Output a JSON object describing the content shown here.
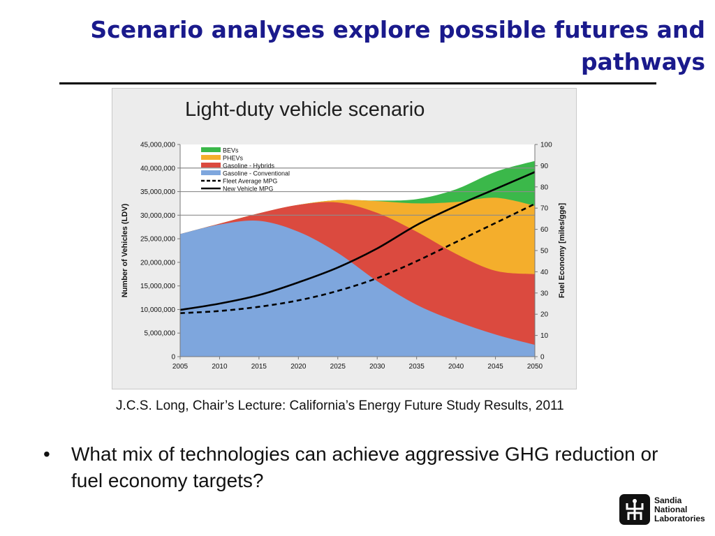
{
  "slide": {
    "title": "Scenario analyses explore possible futures and pathways",
    "citation": "J.C.S. Long, Chair’s Lecture: California’s Energy Future Study Results, 2011",
    "bullet": "What mix of technologies can achieve aggressive GHG reduction or fuel economy targets?",
    "logo_lines": [
      "Sandia",
      "National",
      "Laboratories"
    ]
  },
  "colors": {
    "title": "#1a1a8c",
    "bevs": "#3bb84a",
    "phevs": "#f4ae2c",
    "hybrids": "#db4a3f",
    "conventional": "#7ea6dd"
  },
  "chart_data": {
    "type": "area",
    "title": "Light-duty vehicle scenario",
    "x": [
      2005,
      2010,
      2015,
      2020,
      2025,
      2030,
      2035,
      2040,
      2045,
      2050
    ],
    "ylabel": "Number of Vehicles (LDV)",
    "ylabel_right": "Fuel Economy [miles/gge]",
    "ylim": [
      0,
      45000000
    ],
    "ylim_right": [
      0,
      100
    ],
    "x_ticks": [
      "2005",
      "2010",
      "2015",
      "2020",
      "2025",
      "2030",
      "2035",
      "2040",
      "2045",
      "2050"
    ],
    "y_ticks": [
      "0",
      "5,000,000",
      "10,000,000",
      "15,000,000",
      "20,000,000",
      "25,000,000",
      "30,000,000",
      "35,000,000",
      "40,000,000",
      "45,000,000"
    ],
    "y_ticks_right": [
      "0",
      "10",
      "20",
      "30",
      "40",
      "50",
      "60",
      "70",
      "80",
      "90",
      "100"
    ],
    "grid_lines_y": [
      30000000,
      35000000,
      40000000
    ],
    "legend_position": "top-left",
    "series": [
      {
        "name": "BEVs",
        "kind": "area",
        "color": "#3bb84a",
        "values": [
          0,
          0,
          0,
          0,
          0,
          100000,
          900000,
          2700000,
          5500000,
          9500000
        ]
      },
      {
        "name": "PHEVs",
        "kind": "area",
        "color": "#f4ae2c",
        "values": [
          0,
          0,
          0,
          0,
          500000,
          2500000,
          6000000,
          11000000,
          15500000,
          14500000
        ]
      },
      {
        "name": "Gasoline - Hybrids",
        "kind": "area",
        "color": "#db4a3f",
        "values": [
          0,
          200000,
          1600000,
          5700000,
          10700000,
          14500000,
          15500000,
          14300000,
          13500000,
          15000000
        ]
      },
      {
        "name": "Gasoline - Conventional",
        "kind": "area",
        "color": "#7ea6dd",
        "values": [
          26000000,
          28000000,
          28800000,
          26500000,
          22000000,
          16000000,
          11000000,
          7500000,
          4700000,
          2500000
        ]
      },
      {
        "name": "Fleet Average MPG",
        "kind": "line",
        "dash": true,
        "axis": "right",
        "values": [
          20.5,
          21.5,
          23.5,
          26.5,
          31,
          37,
          45,
          54,
          63,
          72
        ]
      },
      {
        "name": "New Vehicle MPG",
        "kind": "line",
        "dash": false,
        "axis": "right",
        "values": [
          22,
          25,
          29,
          35,
          42,
          51,
          62,
          71,
          79,
          87
        ]
      }
    ]
  }
}
